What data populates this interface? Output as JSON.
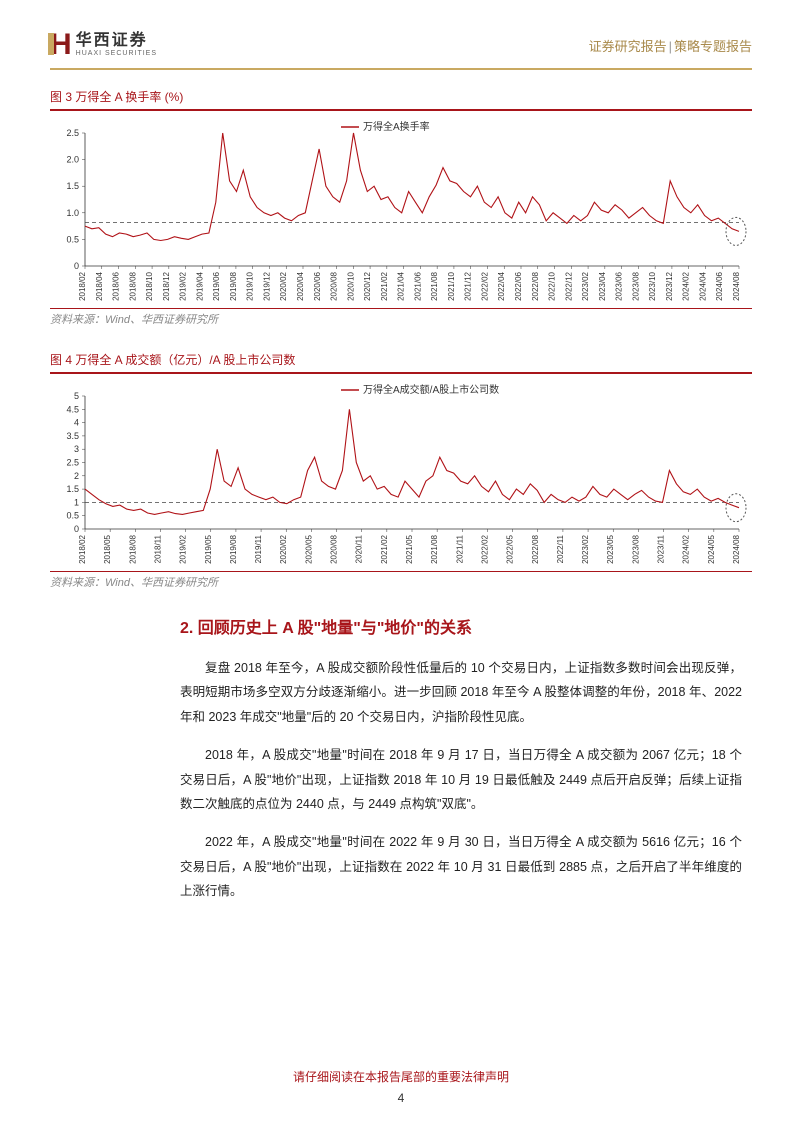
{
  "header": {
    "logo_cn": "华西证券",
    "logo_en": "HUAXI SECURITIES",
    "doc_type_left": "证券研究报告",
    "doc_type_right": "策略专题报告"
  },
  "chart1": {
    "title": "图 3 万得全 A 换手率 (%)",
    "legend": "万得全A换手率",
    "source": "资料来源：Wind、华西证券研究所",
    "type": "line",
    "ylim": [
      0,
      2.5
    ],
    "yticks": [
      "0",
      "0.5",
      "1.0",
      "1.5",
      "2.0",
      "2.5"
    ],
    "xticks": [
      "2018/02",
      "2018/04",
      "2018/06",
      "2018/08",
      "2018/10",
      "2018/12",
      "2019/02",
      "2019/04",
      "2019/06",
      "2019/08",
      "2019/10",
      "2019/12",
      "2020/02",
      "2020/04",
      "2020/06",
      "2020/08",
      "2020/10",
      "2020/12",
      "2021/02",
      "2021/04",
      "2021/06",
      "2021/08",
      "2021/10",
      "2021/12",
      "2022/02",
      "2022/04",
      "2022/06",
      "2022/08",
      "2022/10",
      "2022/12",
      "2023/02",
      "2023/04",
      "2023/06",
      "2023/08",
      "2023/10",
      "2023/12",
      "2024/02",
      "2024/04",
      "2024/06",
      "2024/08"
    ],
    "reference_line": 0.82,
    "data": [
      0.75,
      0.7,
      0.72,
      0.6,
      0.55,
      0.62,
      0.6,
      0.55,
      0.58,
      0.62,
      0.5,
      0.48,
      0.5,
      0.55,
      0.52,
      0.5,
      0.55,
      0.6,
      0.62,
      1.2,
      2.5,
      1.6,
      1.4,
      1.8,
      1.3,
      1.1,
      1.0,
      0.95,
      1.0,
      0.9,
      0.85,
      0.95,
      1.0,
      1.6,
      2.2,
      1.5,
      1.3,
      1.2,
      1.6,
      2.5,
      1.8,
      1.4,
      1.5,
      1.25,
      1.3,
      1.1,
      1.0,
      1.4,
      1.2,
      1.0,
      1.3,
      1.52,
      1.85,
      1.6,
      1.55,
      1.4,
      1.3,
      1.5,
      1.2,
      1.1,
      1.3,
      1.0,
      0.9,
      1.2,
      1.0,
      1.3,
      1.15,
      0.85,
      1.0,
      0.9,
      0.8,
      0.95,
      0.85,
      0.95,
      1.2,
      1.05,
      1.0,
      1.15,
      1.05,
      0.9,
      1.0,
      1.1,
      0.95,
      0.85,
      0.8,
      1.6,
      1.3,
      1.1,
      1.0,
      1.15,
      0.95,
      0.85,
      0.9,
      0.8,
      0.7,
      0.65
    ],
    "line_color": "#b01217",
    "ref_line_color": "#444444",
    "circle_color": "#555555",
    "background_color": "#ffffff",
    "title_fontsize": 12,
    "title_color": "#a8151a"
  },
  "chart2": {
    "title": "图 4 万得全 A 成交额（亿元）/A 股上市公司数",
    "legend": "万得全A成交额/A股上市公司数",
    "source": "资料来源：Wind、华西证券研究所",
    "type": "line",
    "ylim": [
      0,
      5
    ],
    "yticks": [
      "0",
      "0.5",
      "1",
      "1.5",
      "2",
      "2.5",
      "3",
      "3.5",
      "4",
      "4.5",
      "5"
    ],
    "xticks": [
      "2018/02",
      "2018/05",
      "2018/08",
      "2018/11",
      "2019/02",
      "2019/05",
      "2019/08",
      "2019/11",
      "2020/02",
      "2020/05",
      "2020/08",
      "2020/11",
      "2021/02",
      "2021/05",
      "2021/08",
      "2021/11",
      "2022/02",
      "2022/05",
      "2022/08",
      "2022/11",
      "2023/02",
      "2023/05",
      "2023/08",
      "2023/11",
      "2024/02",
      "2024/05",
      "2024/08"
    ],
    "reference_line": 1.0,
    "data": [
      1.5,
      1.3,
      1.1,
      0.95,
      0.85,
      0.9,
      0.75,
      0.7,
      0.75,
      0.6,
      0.55,
      0.6,
      0.65,
      0.58,
      0.55,
      0.6,
      0.65,
      0.7,
      1.5,
      3.0,
      1.8,
      1.6,
      2.3,
      1.5,
      1.3,
      1.2,
      1.1,
      1.2,
      1.0,
      0.95,
      1.1,
      1.2,
      2.2,
      2.7,
      1.8,
      1.6,
      1.5,
      2.2,
      4.5,
      2.5,
      1.8,
      2.0,
      1.5,
      1.6,
      1.3,
      1.2,
      1.8,
      1.5,
      1.2,
      1.8,
      2.0,
      2.7,
      2.2,
      2.1,
      1.8,
      1.7,
      2.0,
      1.6,
      1.4,
      1.8,
      1.3,
      1.1,
      1.5,
      1.3,
      1.7,
      1.45,
      1.0,
      1.3,
      1.1,
      1.0,
      1.2,
      1.05,
      1.2,
      1.6,
      1.3,
      1.2,
      1.5,
      1.3,
      1.1,
      1.3,
      1.45,
      1.2,
      1.05,
      1.0,
      2.2,
      1.7,
      1.4,
      1.3,
      1.5,
      1.2,
      1.05,
      1.15,
      1.0,
      0.9,
      0.8
    ],
    "line_color": "#b01217",
    "ref_line_color": "#444444",
    "circle_color": "#555555",
    "background_color": "#ffffff",
    "title_fontsize": 12,
    "title_color": "#a8151a"
  },
  "section": {
    "title": "2. 回顾历史上 A 股\"地量\"与\"地价\"的关系",
    "para1": "复盘 2018 年至今，A 股成交额阶段性低量后的 10 个交易日内，上证指数多数时间会出现反弹，表明短期市场多空双方分歧逐渐缩小。进一步回顾 2018 年至今 A 股整体调整的年份，2018 年、2022 年和 2023 年成交\"地量\"后的 20 个交易日内，沪指阶段性见底。",
    "para2": "2018 年，A 股成交\"地量\"时间在 2018 年 9 月 17 日，当日万得全 A 成交额为 2067 亿元；18 个交易日后，A 股\"地价\"出现，上证指数 2018 年 10 月 19 日最低触及 2449 点后开启反弹；后续上证指数二次触底的点位为 2440 点，与 2449 点构筑\"双底\"。",
    "para3": "2022 年，A 股成交\"地量\"时间在 2022 年 9 月 30 日，当日万得全 A 成交额为 5616 亿元；16 个交易日后，A 股\"地价\"出现，上证指数在 2022 年 10 月 31 日最低到 2885 点，之后开启了半年维度的上涨行情。"
  },
  "footer": {
    "disclaimer": "请仔细阅读在本报告尾部的重要法律声明",
    "page": "4"
  }
}
